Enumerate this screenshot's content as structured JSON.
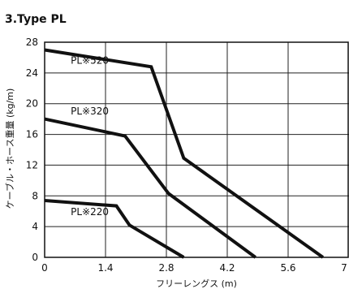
{
  "chart_data": {
    "type": "line",
    "title": "3.Type PL",
    "xlabel": "フリーレングス (m)",
    "ylabel": "ケーブル・ホース重量 (kg/m)",
    "xlim": [
      0,
      7
    ],
    "ylim": [
      0,
      28
    ],
    "xticks": [
      0,
      1.4,
      2.8,
      4.2,
      5.6,
      7
    ],
    "xtick_labels": [
      "0",
      "1.4",
      "2.8",
      "4.2",
      "5.6",
      "7"
    ],
    "yticks": [
      0,
      4,
      8,
      12,
      16,
      20,
      24,
      28
    ],
    "ytick_labels": [
      "0",
      "4",
      "8",
      "12",
      "16",
      "20",
      "24",
      "28"
    ],
    "grid": true,
    "series": [
      {
        "name": "PL※520",
        "label_at": [
          0.6,
          25.2
        ],
        "points": [
          [
            0,
            27.0
          ],
          [
            2.45,
            24.8
          ],
          [
            3.2,
            12.9
          ],
          [
            6.4,
            0
          ]
        ]
      },
      {
        "name": "PL※320",
        "label_at": [
          0.6,
          18.6
        ],
        "points": [
          [
            0,
            18.0
          ],
          [
            1.85,
            15.8
          ],
          [
            2.85,
            8.3
          ],
          [
            4.85,
            0
          ]
        ]
      },
      {
        "name": "PL※220",
        "label_at": [
          0.6,
          5.5
        ],
        "points": [
          [
            0,
            7.4
          ],
          [
            1.65,
            6.7
          ],
          [
            1.95,
            4.2
          ],
          [
            3.2,
            0
          ]
        ]
      }
    ]
  }
}
